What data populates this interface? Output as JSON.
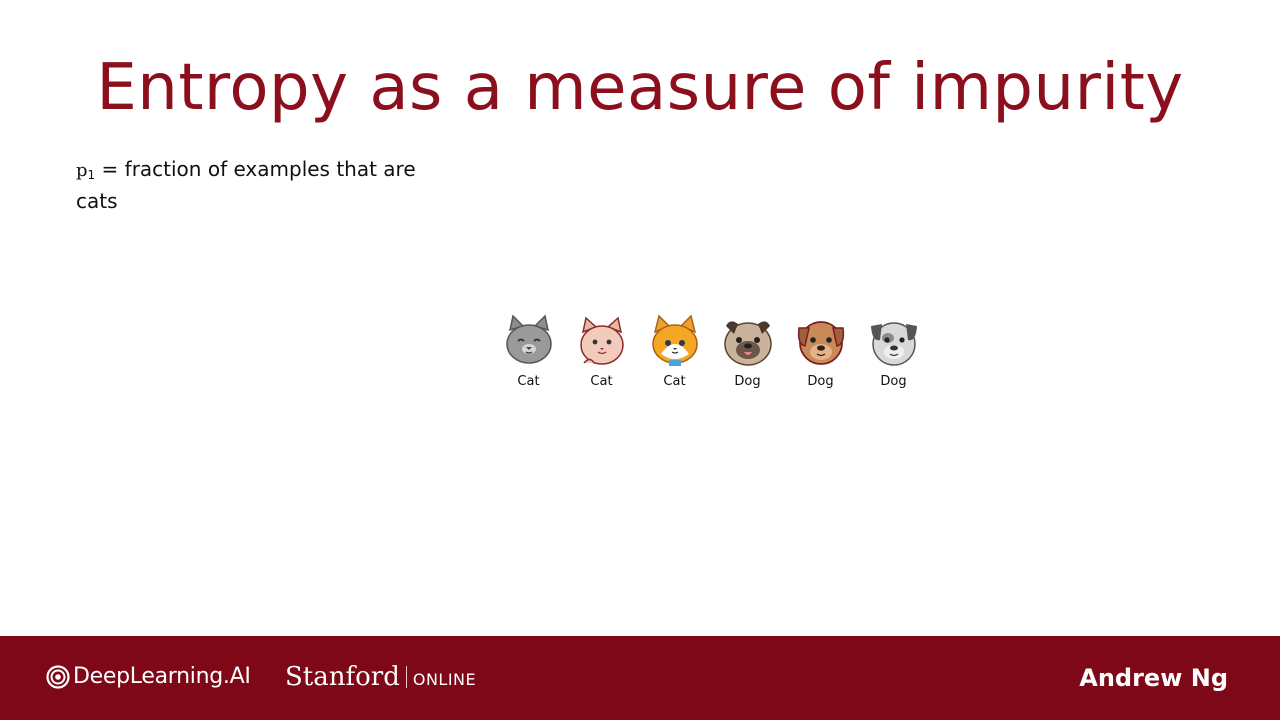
{
  "slide": {
    "title": "Entropy as a measure of impurity",
    "definition": {
      "variable": "p",
      "subscript": "1",
      "text": "= fraction of examples that are cats"
    }
  },
  "examples": [
    {
      "label": "Cat",
      "icon": "gray-cat-icon"
    },
    {
      "label": "Cat",
      "icon": "pink-cat-icon"
    },
    {
      "label": "Cat",
      "icon": "orange-cat-icon"
    },
    {
      "label": "Dog",
      "icon": "pug-dog-icon"
    },
    {
      "label": "Dog",
      "icon": "brown-dog-icon"
    },
    {
      "label": "Dog",
      "icon": "gray-dog-icon"
    }
  ],
  "footer": {
    "brand": "DeepLearning.AI",
    "university": "Stanford",
    "online": "ONLINE",
    "presenter": "Andrew Ng",
    "background_color": "#7e0817"
  },
  "colors": {
    "title": "#8b0f1d"
  }
}
